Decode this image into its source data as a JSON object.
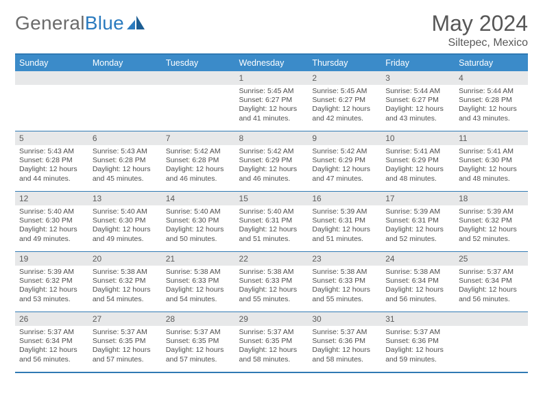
{
  "logo": {
    "text1": "General",
    "text2": "Blue"
  },
  "title": "May 2024",
  "location": "Siltepec, Mexico",
  "colors": {
    "header_bg": "#3b8bc9",
    "border": "#2f79b3",
    "daynum_bg": "#e7e8e9",
    "text": "#575757"
  },
  "day_headers": [
    "Sunday",
    "Monday",
    "Tuesday",
    "Wednesday",
    "Thursday",
    "Friday",
    "Saturday"
  ],
  "weeks": [
    [
      {
        "num": "",
        "lines": []
      },
      {
        "num": "",
        "lines": []
      },
      {
        "num": "",
        "lines": []
      },
      {
        "num": "1",
        "lines": [
          "Sunrise: 5:45 AM",
          "Sunset: 6:27 PM",
          "Daylight: 12 hours",
          "and 41 minutes."
        ]
      },
      {
        "num": "2",
        "lines": [
          "Sunrise: 5:45 AM",
          "Sunset: 6:27 PM",
          "Daylight: 12 hours",
          "and 42 minutes."
        ]
      },
      {
        "num": "3",
        "lines": [
          "Sunrise: 5:44 AM",
          "Sunset: 6:27 PM",
          "Daylight: 12 hours",
          "and 43 minutes."
        ]
      },
      {
        "num": "4",
        "lines": [
          "Sunrise: 5:44 AM",
          "Sunset: 6:28 PM",
          "Daylight: 12 hours",
          "and 43 minutes."
        ]
      }
    ],
    [
      {
        "num": "5",
        "lines": [
          "Sunrise: 5:43 AM",
          "Sunset: 6:28 PM",
          "Daylight: 12 hours",
          "and 44 minutes."
        ]
      },
      {
        "num": "6",
        "lines": [
          "Sunrise: 5:43 AM",
          "Sunset: 6:28 PM",
          "Daylight: 12 hours",
          "and 45 minutes."
        ]
      },
      {
        "num": "7",
        "lines": [
          "Sunrise: 5:42 AM",
          "Sunset: 6:28 PM",
          "Daylight: 12 hours",
          "and 46 minutes."
        ]
      },
      {
        "num": "8",
        "lines": [
          "Sunrise: 5:42 AM",
          "Sunset: 6:29 PM",
          "Daylight: 12 hours",
          "and 46 minutes."
        ]
      },
      {
        "num": "9",
        "lines": [
          "Sunrise: 5:42 AM",
          "Sunset: 6:29 PM",
          "Daylight: 12 hours",
          "and 47 minutes."
        ]
      },
      {
        "num": "10",
        "lines": [
          "Sunrise: 5:41 AM",
          "Sunset: 6:29 PM",
          "Daylight: 12 hours",
          "and 48 minutes."
        ]
      },
      {
        "num": "11",
        "lines": [
          "Sunrise: 5:41 AM",
          "Sunset: 6:30 PM",
          "Daylight: 12 hours",
          "and 48 minutes."
        ]
      }
    ],
    [
      {
        "num": "12",
        "lines": [
          "Sunrise: 5:40 AM",
          "Sunset: 6:30 PM",
          "Daylight: 12 hours",
          "and 49 minutes."
        ]
      },
      {
        "num": "13",
        "lines": [
          "Sunrise: 5:40 AM",
          "Sunset: 6:30 PM",
          "Daylight: 12 hours",
          "and 49 minutes."
        ]
      },
      {
        "num": "14",
        "lines": [
          "Sunrise: 5:40 AM",
          "Sunset: 6:30 PM",
          "Daylight: 12 hours",
          "and 50 minutes."
        ]
      },
      {
        "num": "15",
        "lines": [
          "Sunrise: 5:40 AM",
          "Sunset: 6:31 PM",
          "Daylight: 12 hours",
          "and 51 minutes."
        ]
      },
      {
        "num": "16",
        "lines": [
          "Sunrise: 5:39 AM",
          "Sunset: 6:31 PM",
          "Daylight: 12 hours",
          "and 51 minutes."
        ]
      },
      {
        "num": "17",
        "lines": [
          "Sunrise: 5:39 AM",
          "Sunset: 6:31 PM",
          "Daylight: 12 hours",
          "and 52 minutes."
        ]
      },
      {
        "num": "18",
        "lines": [
          "Sunrise: 5:39 AM",
          "Sunset: 6:32 PM",
          "Daylight: 12 hours",
          "and 52 minutes."
        ]
      }
    ],
    [
      {
        "num": "19",
        "lines": [
          "Sunrise: 5:39 AM",
          "Sunset: 6:32 PM",
          "Daylight: 12 hours",
          "and 53 minutes."
        ]
      },
      {
        "num": "20",
        "lines": [
          "Sunrise: 5:38 AM",
          "Sunset: 6:32 PM",
          "Daylight: 12 hours",
          "and 54 minutes."
        ]
      },
      {
        "num": "21",
        "lines": [
          "Sunrise: 5:38 AM",
          "Sunset: 6:33 PM",
          "Daylight: 12 hours",
          "and 54 minutes."
        ]
      },
      {
        "num": "22",
        "lines": [
          "Sunrise: 5:38 AM",
          "Sunset: 6:33 PM",
          "Daylight: 12 hours",
          "and 55 minutes."
        ]
      },
      {
        "num": "23",
        "lines": [
          "Sunrise: 5:38 AM",
          "Sunset: 6:33 PM",
          "Daylight: 12 hours",
          "and 55 minutes."
        ]
      },
      {
        "num": "24",
        "lines": [
          "Sunrise: 5:38 AM",
          "Sunset: 6:34 PM",
          "Daylight: 12 hours",
          "and 56 minutes."
        ]
      },
      {
        "num": "25",
        "lines": [
          "Sunrise: 5:37 AM",
          "Sunset: 6:34 PM",
          "Daylight: 12 hours",
          "and 56 minutes."
        ]
      }
    ],
    [
      {
        "num": "26",
        "lines": [
          "Sunrise: 5:37 AM",
          "Sunset: 6:34 PM",
          "Daylight: 12 hours",
          "and 56 minutes."
        ]
      },
      {
        "num": "27",
        "lines": [
          "Sunrise: 5:37 AM",
          "Sunset: 6:35 PM",
          "Daylight: 12 hours",
          "and 57 minutes."
        ]
      },
      {
        "num": "28",
        "lines": [
          "Sunrise: 5:37 AM",
          "Sunset: 6:35 PM",
          "Daylight: 12 hours",
          "and 57 minutes."
        ]
      },
      {
        "num": "29",
        "lines": [
          "Sunrise: 5:37 AM",
          "Sunset: 6:35 PM",
          "Daylight: 12 hours",
          "and 58 minutes."
        ]
      },
      {
        "num": "30",
        "lines": [
          "Sunrise: 5:37 AM",
          "Sunset: 6:36 PM",
          "Daylight: 12 hours",
          "and 58 minutes."
        ]
      },
      {
        "num": "31",
        "lines": [
          "Sunrise: 5:37 AM",
          "Sunset: 6:36 PM",
          "Daylight: 12 hours",
          "and 59 minutes."
        ]
      },
      {
        "num": "",
        "lines": []
      }
    ]
  ]
}
